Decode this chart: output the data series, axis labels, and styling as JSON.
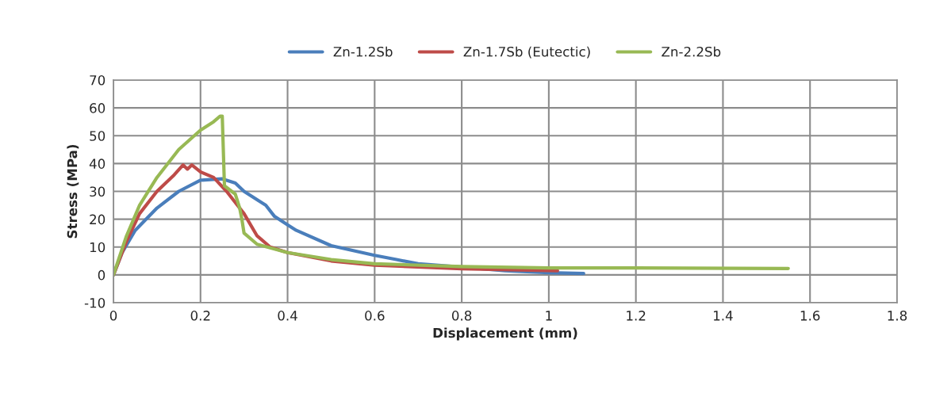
{
  "chart_data": {
    "type": "line",
    "xlabel": "Displacement (mm)",
    "ylabel": "Stress (MPa)",
    "xlim": [
      0,
      1.8
    ],
    "xticks": [
      0,
      0.2,
      0.4,
      0.6,
      0.8,
      1,
      1.2,
      1.4,
      1.6,
      1.8
    ],
    "ylim": [
      -10,
      70
    ],
    "yticks": [
      -10,
      0,
      10,
      20,
      30,
      40,
      50,
      60,
      70
    ],
    "grid": true,
    "legend": "top",
    "marker": "none",
    "line_style": "solid",
    "series": [
      {
        "name": "Zn-1.2Sb",
        "color": "#4a7ebb",
        "x": [
          0,
          0.02,
          0.05,
          0.1,
          0.15,
          0.2,
          0.25,
          0.28,
          0.3,
          0.35,
          0.37,
          0.4,
          0.42,
          0.5,
          0.6,
          0.65,
          0.7,
          0.8,
          0.9,
          1.0,
          1.08
        ],
        "values": [
          0,
          8,
          16,
          24,
          30,
          34,
          34.5,
          33,
          30,
          25,
          21,
          18,
          16,
          10.5,
          7,
          5.5,
          4,
          2.8,
          1.5,
          0.8,
          0.5
        ]
      },
      {
        "name": "Zn-1.7Sb (Eutectic)",
        "color": "#be4b48",
        "x": [
          0,
          0.03,
          0.06,
          0.1,
          0.14,
          0.16,
          0.17,
          0.18,
          0.2,
          0.23,
          0.26,
          0.3,
          0.33,
          0.36,
          0.4,
          0.5,
          0.6,
          0.8,
          1.02
        ],
        "values": [
          0,
          12,
          22,
          30,
          36,
          39.5,
          38,
          39.5,
          37,
          35,
          30,
          22,
          14,
          10,
          8,
          5,
          3.5,
          2.2,
          1.5
        ]
      },
      {
        "name": "Zn-2.2Sb",
        "color": "#98b954",
        "x": [
          0,
          0.03,
          0.06,
          0.1,
          0.15,
          0.2,
          0.23,
          0.245,
          0.25,
          0.255,
          0.28,
          0.29,
          0.295,
          0.3,
          0.33,
          0.4,
          0.5,
          0.6,
          0.8,
          1.0,
          1.2,
          1.55
        ],
        "values": [
          0,
          14,
          25,
          35,
          45,
          52,
          55,
          57,
          57,
          32,
          29,
          24,
          20,
          15,
          11,
          8,
          5.5,
          4,
          3,
          2.5,
          2.5,
          2.3
        ]
      }
    ]
  }
}
